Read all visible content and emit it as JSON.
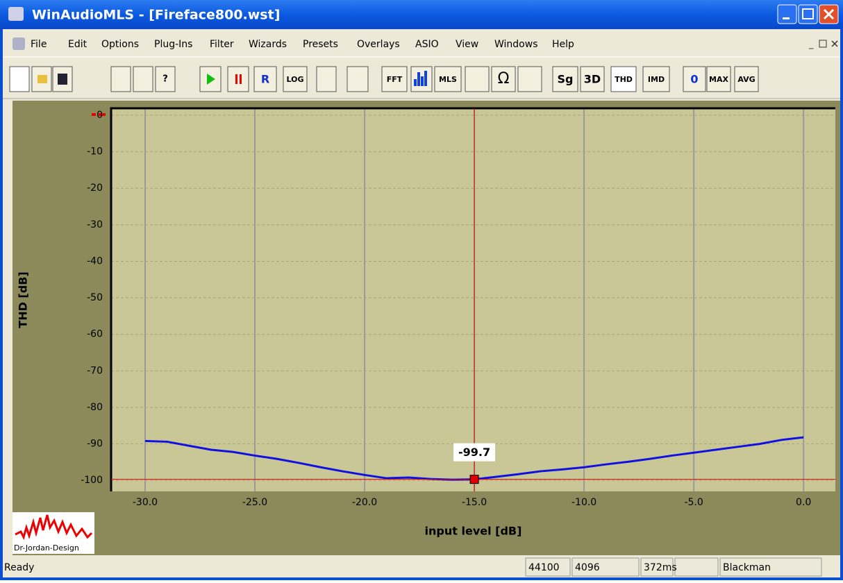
{
  "window": {
    "title": "WinAudioMLS - [Fireface800.wst]"
  },
  "menu": [
    "File",
    "Edit",
    "Options",
    "Plug-Ins",
    "Filter",
    "Wizards",
    "Presets",
    "Overlays",
    "ASIO",
    "View",
    "Windows",
    "Help"
  ],
  "toolbar": [
    "R",
    "LOG",
    "FFT",
    "MLS",
    "Sg",
    "3D",
    "THD",
    "IMD",
    "0",
    "MAX",
    "AVG"
  ],
  "logo": "Dr-Jordan-Design",
  "status": {
    "text": "Ready",
    "panels": [
      "44100",
      "4096",
      "372ms",
      "Blackman"
    ]
  },
  "chart_data": {
    "type": "line",
    "x_label": "input level [dB]",
    "y_label": "THD [dB]",
    "x": [
      -30,
      -29,
      -28,
      -27,
      -26,
      -25,
      -24,
      -23,
      -22,
      -21,
      -20,
      -19,
      -18,
      -17,
      -16,
      -15,
      -14,
      -13,
      -12,
      -11,
      -10,
      -9,
      -8,
      -7,
      -6,
      -5,
      -4,
      -3,
      -2,
      -1,
      0
    ],
    "series": [
      {
        "color": "#1010e0",
        "values": [
          -89.2,
          -89.4,
          -90.5,
          -91.6,
          -92.2,
          -93.2,
          -94.1,
          -95.2,
          -96.4,
          -97.5,
          -98.5,
          -99.4,
          -99.2,
          -99.6,
          -99.8,
          -99.7,
          -99.0,
          -98.3,
          -97.5,
          -97.0,
          -96.4,
          -95.6,
          -94.9,
          -94.1,
          -93.2,
          -92.4,
          -91.6,
          -90.8,
          -90.0,
          -88.9,
          -88.2
        ]
      }
    ],
    "xlim": [
      -31.55,
      1.45
    ],
    "xticks": [
      {
        "value": -30,
        "label": "-30.0"
      },
      {
        "value": -25,
        "label": "-25.0"
      },
      {
        "value": -20,
        "label": "-20.0"
      },
      {
        "value": -15,
        "label": "-15.0"
      },
      {
        "value": -10,
        "label": "-10.0"
      },
      {
        "value": -5,
        "label": "-5.0"
      },
      {
        "value": 0,
        "label": "0.0"
      }
    ],
    "ylim": [
      -103,
      1.9
    ],
    "yticks": [
      0,
      -10,
      -20,
      -30,
      -40,
      -50,
      -60,
      -70,
      -80,
      -90,
      -100
    ],
    "grid": true,
    "cursor": {
      "x": -15,
      "y": -99.7,
      "color": "#e00000"
    }
  }
}
